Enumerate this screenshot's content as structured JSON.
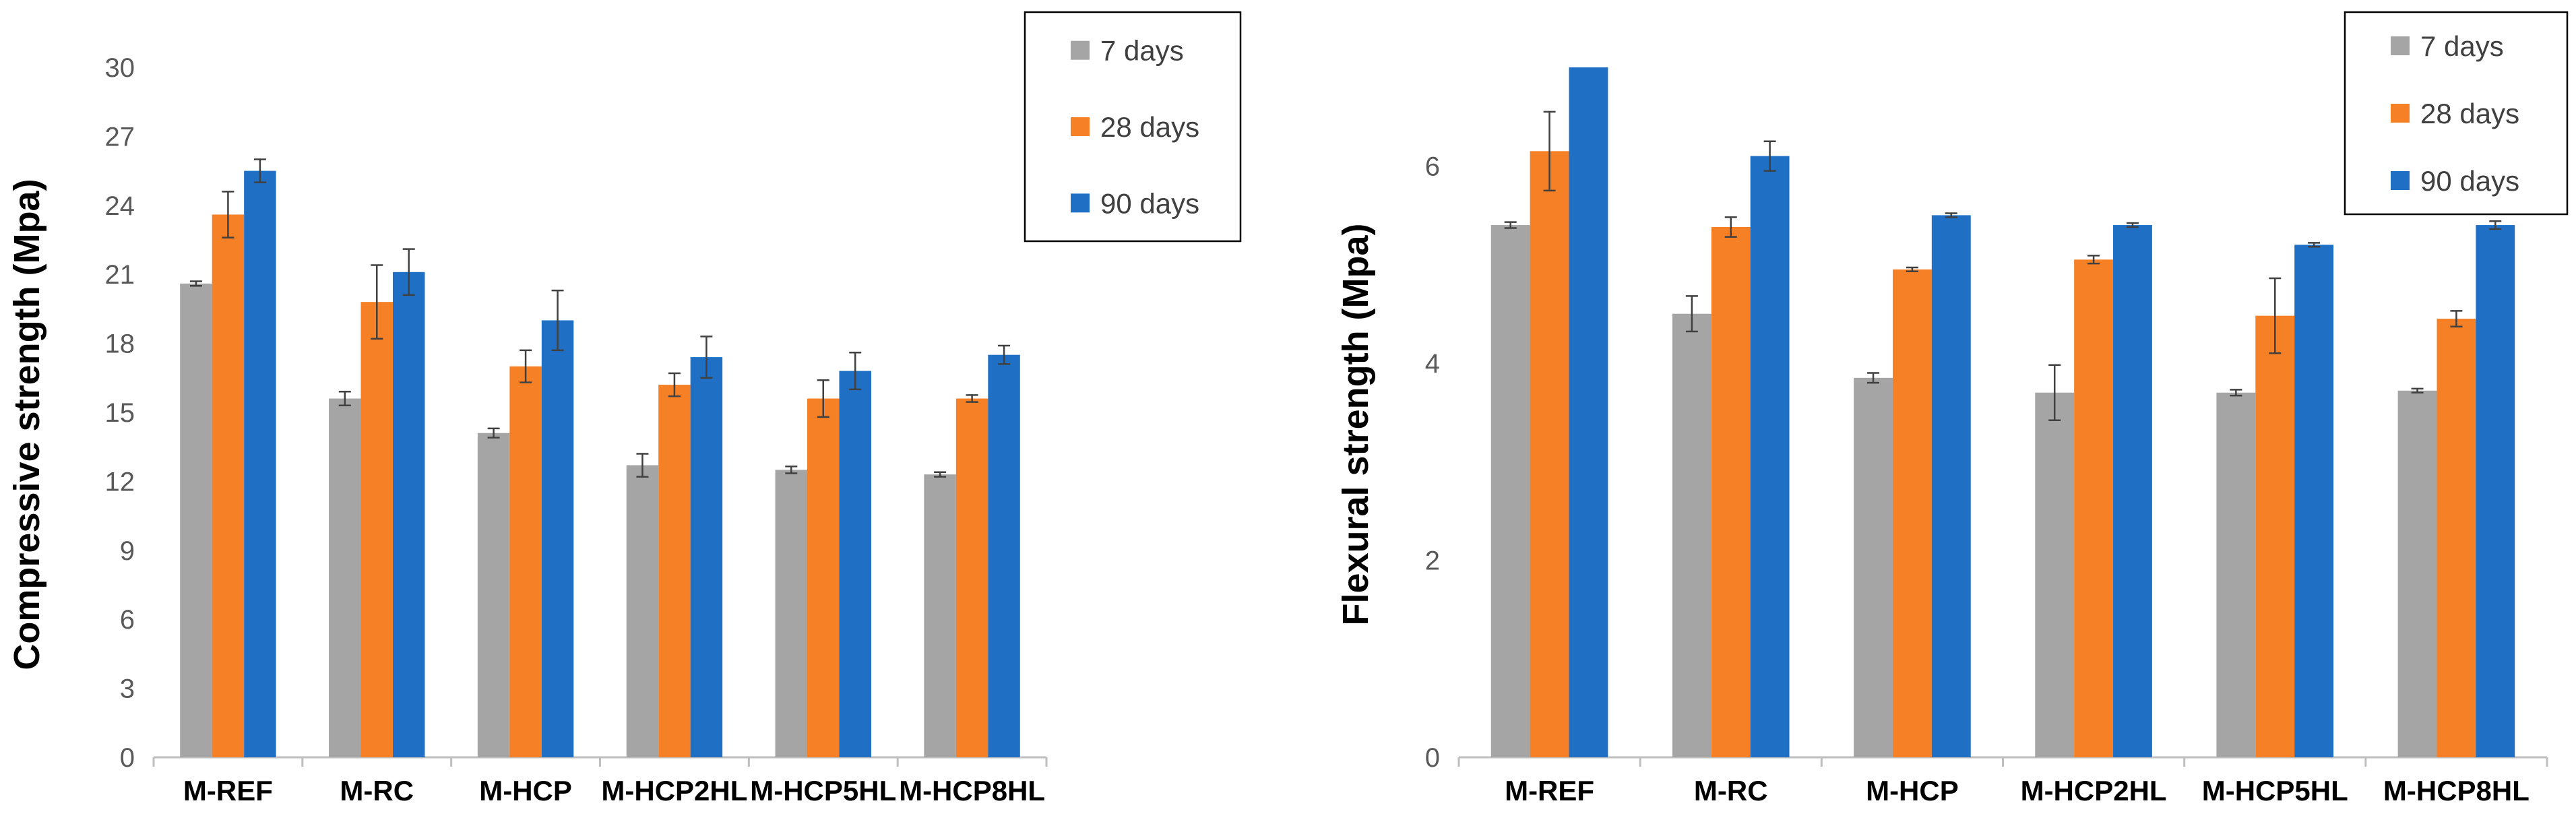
{
  "chart_data": [
    {
      "type": "bar",
      "title": "",
      "xlabel": "",
      "ylabel": "Compressive strength (Mpa)",
      "ylim": [
        0,
        30
      ],
      "ytick_step": 3,
      "ytick_labels": [
        "0",
        "3",
        "6",
        "9",
        "12",
        "15",
        "18",
        "21",
        "24",
        "27",
        "30"
      ],
      "categories": [
        "M-REF",
        "M-RC",
        "M-HCP",
        "M-HCP2HL",
        "M-HCP5HL",
        "M-HCP8HL"
      ],
      "series": [
        {
          "name": "7 days",
          "color": "#a5a5a5",
          "values": [
            20.6,
            15.6,
            14.1,
            12.7,
            12.5,
            12.3
          ],
          "errors": [
            0.1,
            0.3,
            0.2,
            0.5,
            0.15,
            0.1
          ]
        },
        {
          "name": "28 days",
          "color": "#f58025",
          "values": [
            23.6,
            19.8,
            17.0,
            16.2,
            15.6,
            15.6
          ],
          "errors": [
            1.0,
            1.6,
            0.7,
            0.5,
            0.8,
            0.15
          ]
        },
        {
          "name": "90 days",
          "color": "#1f6fc5",
          "values": [
            25.5,
            21.1,
            19.0,
            17.4,
            16.8,
            17.5
          ],
          "errors": [
            0.5,
            1.0,
            1.3,
            0.9,
            0.8,
            0.4
          ]
        }
      ],
      "legend": {
        "position": "top-right",
        "entries": [
          "7 days",
          "28 days",
          "90 days"
        ]
      },
      "grid": false
    },
    {
      "type": "bar",
      "title": "",
      "xlabel": "",
      "ylabel": "Flexural strength (Mpa)",
      "ylim": [
        0,
        7
      ],
      "ytick_step": 2,
      "ytick_labels": [
        "0",
        "2",
        "4",
        "6"
      ],
      "categories": [
        "M-REF",
        "M-RC",
        "M-HCP",
        "M-HCP2HL",
        "M-HCP5HL",
        "M-HCP8HL"
      ],
      "series": [
        {
          "name": "7 days",
          "color": "#a5a5a5",
          "values": [
            5.4,
            4.5,
            3.85,
            3.7,
            3.7,
            3.72
          ],
          "errors": [
            0.03,
            0.18,
            0.05,
            0.28,
            0.03,
            0.02
          ]
        },
        {
          "name": "28 days",
          "color": "#f58025",
          "values": [
            6.15,
            5.38,
            4.95,
            5.05,
            4.48,
            4.45
          ],
          "errors": [
            0.4,
            0.1,
            0.02,
            0.04,
            0.38,
            0.08
          ]
        },
        {
          "name": "90 days",
          "color": "#1f6fc5",
          "values": [
            7.0,
            6.1,
            5.5,
            5.4,
            5.2,
            5.4
          ],
          "errors": [
            0.0,
            0.15,
            0.02,
            0.02,
            0.02,
            0.04
          ]
        }
      ],
      "legend": {
        "position": "top-right",
        "entries": [
          "7 days",
          "28 days",
          "90 days"
        ]
      },
      "grid": false
    }
  ]
}
